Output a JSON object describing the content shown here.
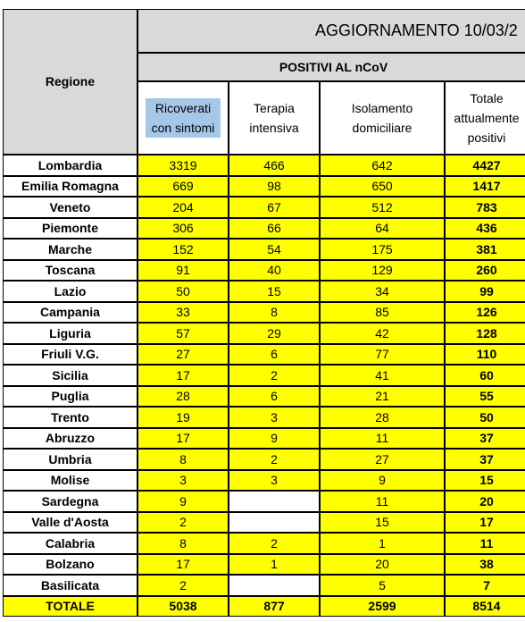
{
  "header": {
    "title": "AGGIORNAMENTO 10/03/2",
    "subtitle": "POSITIVI AL nCoV",
    "columns": [
      "Regione",
      "Ricoverati con sintomi",
      "Terapia intensiva",
      "Isolamento domiciliare",
      "Totale attualmente positivi"
    ]
  },
  "table": {
    "rows": [
      [
        "Lombardia",
        3319,
        466,
        642,
        4427
      ],
      [
        "Emilia Romagna",
        669,
        98,
        650,
        1417
      ],
      [
        "Veneto",
        204,
        67,
        512,
        783
      ],
      [
        "Piemonte",
        306,
        66,
        64,
        436
      ],
      [
        "Marche",
        152,
        54,
        175,
        381
      ],
      [
        "Toscana",
        91,
        40,
        129,
        260
      ],
      [
        "Lazio",
        50,
        15,
        34,
        99
      ],
      [
        "Campania",
        33,
        8,
        85,
        126
      ],
      [
        "Liguria",
        57,
        29,
        42,
        128
      ],
      [
        "Friuli V.G.",
        27,
        6,
        77,
        110
      ],
      [
        "Sicilia",
        17,
        2,
        41,
        60
      ],
      [
        "Puglia",
        28,
        6,
        21,
        55
      ],
      [
        "Trento",
        19,
        3,
        28,
        50
      ],
      [
        "Abruzzo",
        17,
        9,
        11,
        37
      ],
      [
        "Umbria",
        8,
        2,
        27,
        37
      ],
      [
        "Molise",
        3,
        3,
        9,
        15
      ],
      [
        "Sardegna",
        9,
        null,
        11,
        20
      ],
      [
        "Valle d'Aosta",
        2,
        null,
        15,
        17
      ],
      [
        "Calabria",
        8,
        2,
        1,
        11
      ],
      [
        "Bolzano",
        17,
        1,
        20,
        38
      ],
      [
        "Basilicata",
        2,
        null,
        5,
        7
      ]
    ],
    "total": [
      "TOTALE",
      5038,
      877,
      2599,
      8514
    ]
  }
}
